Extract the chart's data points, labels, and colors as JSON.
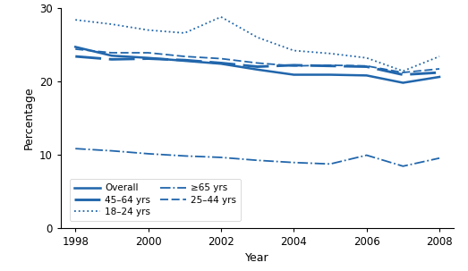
{
  "years": [
    1998,
    1999,
    2000,
    2001,
    2002,
    2003,
    2004,
    2005,
    2006,
    2007,
    2008
  ],
  "overall": [
    24.7,
    23.5,
    23.2,
    22.8,
    22.4,
    21.6,
    20.9,
    20.9,
    20.8,
    19.8,
    20.6
  ],
  "age_18_24": [
    28.4,
    27.8,
    27.0,
    26.6,
    28.8,
    26.0,
    24.2,
    23.8,
    23.2,
    21.4,
    23.4
  ],
  "age_25_44": [
    24.4,
    23.9,
    23.9,
    23.4,
    23.1,
    22.5,
    22.1,
    22.2,
    22.1,
    21.2,
    21.7
  ],
  "age_45_64": [
    23.4,
    23.0,
    23.1,
    22.9,
    22.5,
    22.0,
    22.2,
    22.1,
    22.0,
    20.9,
    21.2
  ],
  "age_65plus": [
    10.8,
    10.5,
    10.1,
    9.8,
    9.6,
    9.2,
    8.9,
    8.7,
    9.9,
    8.4,
    9.5
  ],
  "line_color": "#2166ac",
  "xlabel": "Year",
  "ylabel": "Percentage",
  "ylim": [
    0,
    30
  ],
  "yticks": [
    0,
    10,
    20,
    30
  ],
  "xlim": [
    1997.6,
    2008.4
  ],
  "xticks": [
    1998,
    2000,
    2002,
    2004,
    2006,
    2008
  ],
  "legend_left": [
    "Overall",
    "18–24 yrs",
    "25–44 yrs"
  ],
  "legend_right": [
    "45–64 yrs",
    "≥65 yrs"
  ]
}
